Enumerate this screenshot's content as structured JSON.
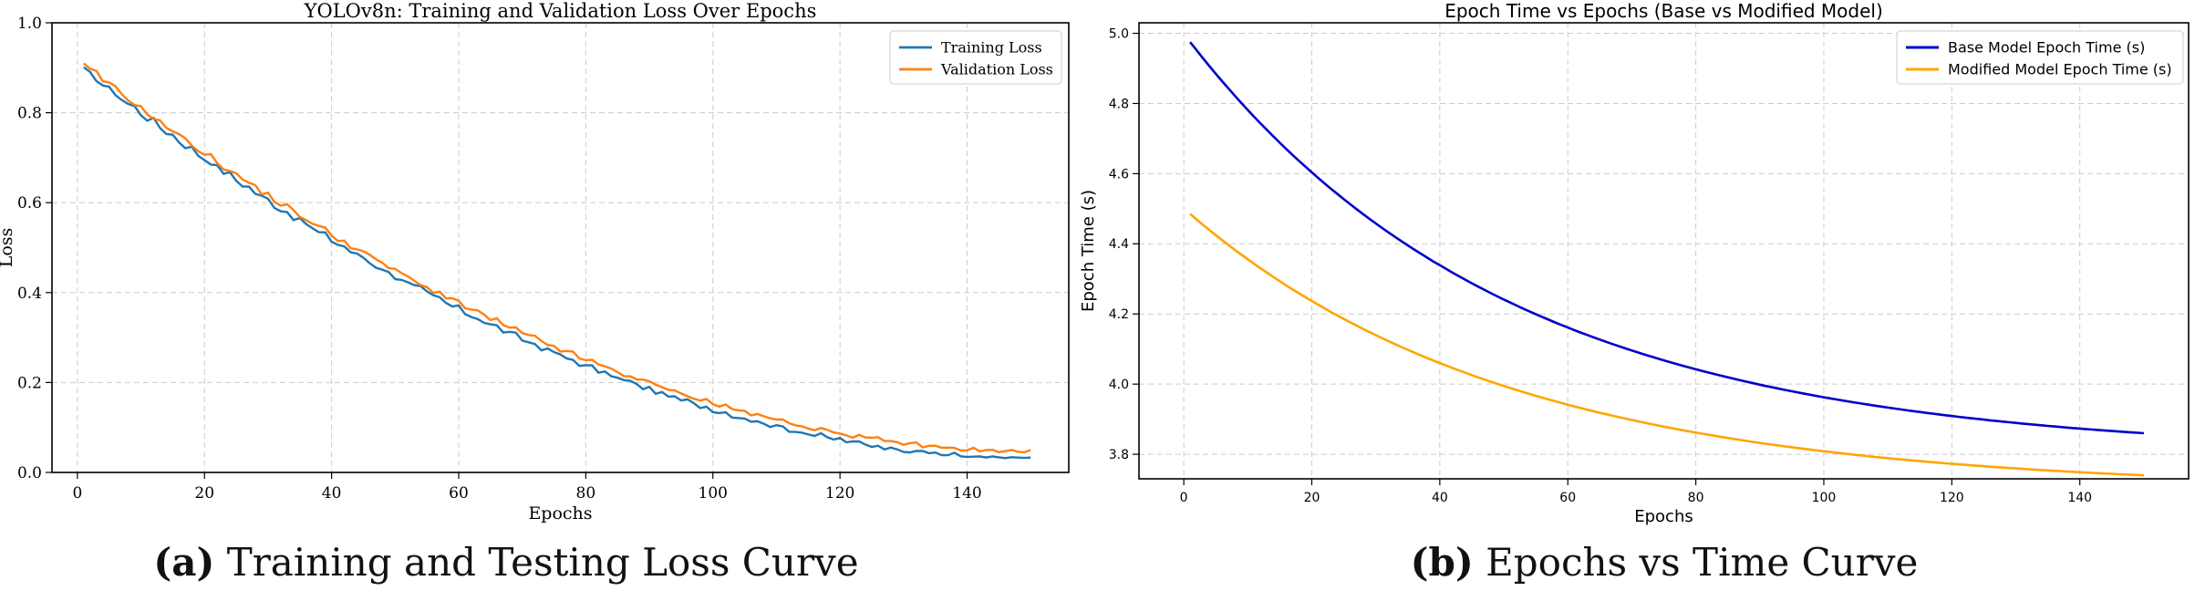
{
  "chart_data": [
    {
      "type": "line",
      "title": "YOLOv8n: Training and Validation Loss Over Epochs",
      "xlabel": "Epochs",
      "ylabel": "Loss",
      "xlim": [
        -4,
        156
      ],
      "ylim": [
        0,
        1.0
      ],
      "xticks": [
        0,
        20,
        40,
        60,
        80,
        100,
        120,
        140
      ],
      "yticks": [
        0.0,
        0.2,
        0.4,
        0.6,
        0.8,
        1.0
      ],
      "ytick_labels": [
        "0.0",
        "0.2",
        "0.4",
        "0.6",
        "0.8",
        "1.0"
      ],
      "grid": true,
      "legend_position": "upper right",
      "series": [
        {
          "name": "Training Loss",
          "color": "#1f77b4",
          "start": 0.895,
          "end": 0.03,
          "noise": 0.008
        },
        {
          "name": "Validation Loss",
          "color": "#ff7f0e",
          "start": 0.905,
          "end": 0.045,
          "noise": 0.007
        }
      ],
      "x_range": [
        1,
        150
      ],
      "caption_tag": "(a)",
      "caption_text": "Training and Testing Loss Curve"
    },
    {
      "type": "line",
      "title": "Epoch Time vs Epochs (Base vs Modified Model)",
      "xlabel": "Epochs",
      "ylabel": "Epoch Time (s)",
      "xlim": [
        -7,
        157
      ],
      "ylim": [
        3.73,
        5.03
      ],
      "xticks": [
        0,
        20,
        40,
        60,
        80,
        100,
        120,
        140
      ],
      "yticks": [
        3.8,
        4.0,
        4.2,
        4.4,
        4.6,
        4.8,
        5.0
      ],
      "ytick_labels": [
        "3.8",
        "4.0",
        "4.2",
        "4.4",
        "4.6",
        "4.8",
        "5.0"
      ],
      "grid": true,
      "legend_position": "upper right",
      "series": [
        {
          "name": "Base Model Epoch Time (s)",
          "color": "#0000cc",
          "start": 4.975,
          "end": 3.86,
          "curve": 0.02
        },
        {
          "name": "Modified Model Epoch Time (s)",
          "color": "#ffa500",
          "start": 4.485,
          "end": 3.74,
          "curve": 0.02
        }
      ],
      "x_range": [
        1,
        150
      ],
      "caption_tag": "(b)",
      "caption_text": "Epochs vs Time Curve"
    }
  ]
}
